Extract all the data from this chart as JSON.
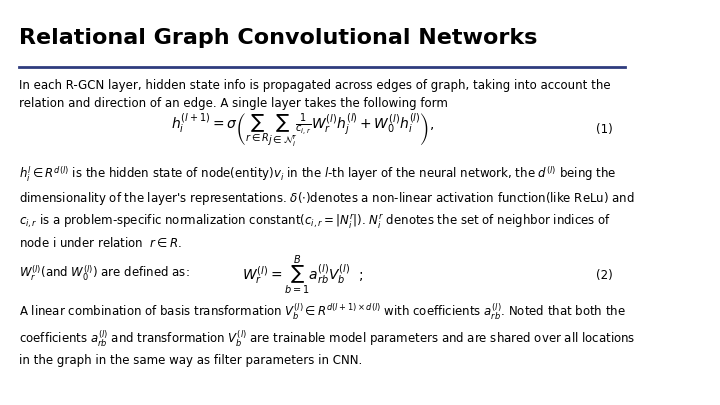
{
  "title": "Relational Graph Convolutional Networks",
  "bg_color": "#ffffff",
  "title_color": "#000000",
  "text_color": "#000000",
  "line_color": "#2f3c7e",
  "title_fontsize": 16,
  "body_fontsize": 8.5,
  "para1": "In each R-GCN layer, hidden state info is propagated across edges of graph, taking into account the\nrelation and direction of an edge. A single layer takes the following form",
  "eq1": "$h_i^{(l+1)} = \\sigma\\left(\\sum_{r\\in R}\\sum_{j\\in\\mathcal{N}_i^r} \\frac{1}{c_{i,r}} W_r^{(l)} h_j^{(l)} + W_0^{(l)} h_i^{(l)}\\right),$",
  "eq1_label": "(1)",
  "para2": "$h_i^l \\in R^{d(l)}$ is the hidden state of node(entity)$v_i$ in the $l$-th layer of the neural network, the $d^{(l)}$ being the\ndimensionality of the layer's representations. $\\delta(\\cdot)$denotes a non-linear activation function(like ReLu) and\n$c_{i,r}$ is a problem-specific normalization constant$(c_{i,r} = |N_i^r|)$. $N_i^r$ denotes the set of neighbor indices of\nnode i under relation  $r \\in R$.",
  "para3_left": "$W_r^{(l)}$(and $W_0^{(l)}$) are defined as:",
  "eq2": "$W_r^{(l)} = \\sum_{b=1}^{B} a_{rb}^{(l)} V_b^{(l)}$  ;",
  "eq2_label": "(2)",
  "para4": "A linear combination of basis transformation $V_b^{(l)} \\in R^{d(l+1)\\times d(l)}$ with coefficients $a_{rb}^{(l)}$. Noted that both the\ncoefficients $a_{rb}^{(l)}$ and transformation $V_b^{(l)}$ are trainable model parameters and are shared over all locations\nin the graph in the same way as filter parameters in CNN."
}
